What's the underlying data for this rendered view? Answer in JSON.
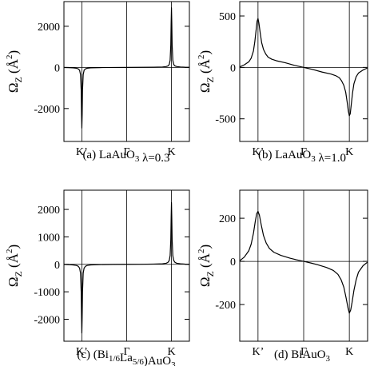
{
  "chart_data": [
    {
      "type": "line",
      "caption_prefix": "(a) LaAuO",
      "caption_sub": "3",
      "caption_suffix": " λ=0.3",
      "ylabel_main": "Ω",
      "ylabel_sub": "Z",
      "ylabel_unit": "(Å",
      "ylabel_unit_sup": "2",
      "ylabel_unit_close": ")",
      "categories": [
        "K’",
        "Γ",
        "K"
      ],
      "xlim": [
        -1.4,
        1.4
      ],
      "ylim": [
        -3600,
        3200
      ],
      "yticks": [
        2000,
        0,
        -2000
      ],
      "ytick_labels": [
        "2000",
        "0",
        "-2000"
      ],
      "series": [
        {
          "x": [
            -1.4,
            -1.3,
            -1.2,
            -1.12,
            -1.08,
            -1.05,
            -1.03,
            -1.015,
            -1.007,
            -1.0,
            -0.993,
            -0.985,
            -0.97,
            -0.95,
            -0.92,
            -0.88,
            -0.8,
            -0.6,
            -0.3,
            0,
            0.3,
            0.6,
            0.8,
            0.88,
            0.92,
            0.95,
            0.97,
            0.985,
            0.993,
            1.0,
            1.007,
            1.015,
            1.03,
            1.05,
            1.08,
            1.12,
            1.2,
            1.3,
            1.4
          ],
          "y": [
            -5,
            -10,
            -20,
            -40,
            -70,
            -140,
            -350,
            -1100,
            -2300,
            -2950,
            -2300,
            -1100,
            -350,
            -140,
            -70,
            -40,
            -20,
            -10,
            -3,
            0,
            3,
            10,
            20,
            40,
            70,
            140,
            350,
            1100,
            2200,
            2900,
            2200,
            1100,
            350,
            140,
            70,
            40,
            20,
            10,
            5
          ]
        }
      ]
    },
    {
      "type": "line",
      "caption_prefix": "(b) LaAuO",
      "caption_sub": "3",
      "caption_suffix": " λ=1.0",
      "ylabel_main": "Ω",
      "ylabel_sub": "Z",
      "ylabel_unit": "(Å",
      "ylabel_unit_sup": "2",
      "ylabel_unit_close": ")",
      "categories": [
        "K’",
        "Γ",
        "K"
      ],
      "xlim": [
        -1.4,
        1.4
      ],
      "ylim": [
        -720,
        640
      ],
      "yticks": [
        500,
        0,
        -500
      ],
      "ytick_labels": [
        "500",
        "0",
        "-500"
      ],
      "series": [
        {
          "x": [
            -1.4,
            -1.3,
            -1.2,
            -1.15,
            -1.1,
            -1.07,
            -1.04,
            -1.02,
            -1.0,
            -0.98,
            -0.95,
            -0.92,
            -0.88,
            -0.83,
            -0.78,
            -0.7,
            -0.6,
            -0.4,
            -0.2,
            0,
            0.2,
            0.4,
            0.6,
            0.7,
            0.78,
            0.83,
            0.88,
            0.92,
            0.95,
            0.98,
            1.0,
            1.02,
            1.04,
            1.07,
            1.1,
            1.15,
            1.2,
            1.3,
            1.4
          ],
          "y": [
            5,
            25,
            55,
            90,
            160,
            250,
            370,
            450,
            475,
            430,
            330,
            240,
            175,
            130,
            100,
            80,
            65,
            45,
            20,
            0,
            -20,
            -45,
            -65,
            -80,
            -100,
            -130,
            -175,
            -240,
            -330,
            -430,
            -470,
            -450,
            -370,
            -250,
            -160,
            -90,
            -55,
            -25,
            -5
          ]
        }
      ]
    },
    {
      "type": "line",
      "caption_prefix": "(c) (Bi",
      "caption_sub": "1/6",
      "caption_mid": "La",
      "caption_sub2": "5/6",
      "caption_suffix": ")AuO",
      "caption_sub3": "3",
      "ylabel_main": "Ω",
      "ylabel_sub": "Z",
      "ylabel_unit": "(Å",
      "ylabel_unit_sup": "2",
      "ylabel_unit_close": ")",
      "categories": [
        "K’",
        "Γ",
        "K"
      ],
      "xlim": [
        -1.4,
        1.4
      ],
      "ylim": [
        -2800,
        2700
      ],
      "yticks": [
        2000,
        1000,
        0,
        -1000,
        -2000
      ],
      "ytick_labels": [
        "2000",
        "1000",
        "0",
        "-1000",
        "-2000"
      ],
      "series": [
        {
          "x": [
            -1.4,
            -1.3,
            -1.2,
            -1.12,
            -1.08,
            -1.05,
            -1.03,
            -1.015,
            -1.007,
            -1.0,
            -0.993,
            -0.985,
            -0.97,
            -0.95,
            -0.92,
            -0.88,
            -0.8,
            -0.6,
            -0.3,
            0,
            0.3,
            0.6,
            0.8,
            0.88,
            0.92,
            0.95,
            0.97,
            0.985,
            0.993,
            1.0,
            1.007,
            1.015,
            1.03,
            1.05,
            1.08,
            1.12,
            1.2,
            1.3,
            1.4
          ],
          "y": [
            -5,
            -10,
            -20,
            -40,
            -70,
            -140,
            -320,
            -1000,
            -1900,
            -2500,
            -1900,
            -1000,
            -320,
            -140,
            -70,
            -40,
            -20,
            -10,
            -3,
            0,
            3,
            10,
            20,
            40,
            70,
            140,
            320,
            900,
            1700,
            2250,
            1700,
            900,
            320,
            140,
            70,
            40,
            20,
            10,
            5
          ]
        }
      ]
    },
    {
      "type": "line",
      "caption_prefix": "(d) BiAuO",
      "caption_sub": "3",
      "caption_suffix": "",
      "ylabel_main": "Ω",
      "ylabel_sub": "Z",
      "ylabel_unit": "(Å",
      "ylabel_unit_sup": "2",
      "ylabel_unit_close": ")",
      "categories": [
        "K’",
        "Γ",
        "K"
      ],
      "xlim": [
        -1.4,
        1.4
      ],
      "ylim": [
        -370,
        330
      ],
      "yticks": [
        200,
        0,
        -200
      ],
      "ytick_labels": [
        "200",
        "0",
        "-200"
      ],
      "series": [
        {
          "x": [
            -1.4,
            -1.3,
            -1.2,
            -1.15,
            -1.1,
            -1.06,
            -1.03,
            -1.0,
            -0.97,
            -0.93,
            -0.88,
            -0.82,
            -0.75,
            -0.65,
            -0.5,
            -0.3,
            -0.15,
            0,
            0.15,
            0.3,
            0.5,
            0.65,
            0.75,
            0.82,
            0.88,
            0.93,
            0.97,
            1.0,
            1.03,
            1.06,
            1.1,
            1.15,
            1.2,
            1.3,
            1.4
          ],
          "y": [
            3,
            20,
            50,
            80,
            130,
            185,
            220,
            232,
            215,
            170,
            120,
            85,
            60,
            42,
            28,
            15,
            7,
            0,
            -7,
            -15,
            -28,
            -42,
            -60,
            -85,
            -120,
            -170,
            -215,
            -240,
            -225,
            -190,
            -135,
            -85,
            -50,
            -20,
            -3
          ]
        }
      ]
    }
  ]
}
